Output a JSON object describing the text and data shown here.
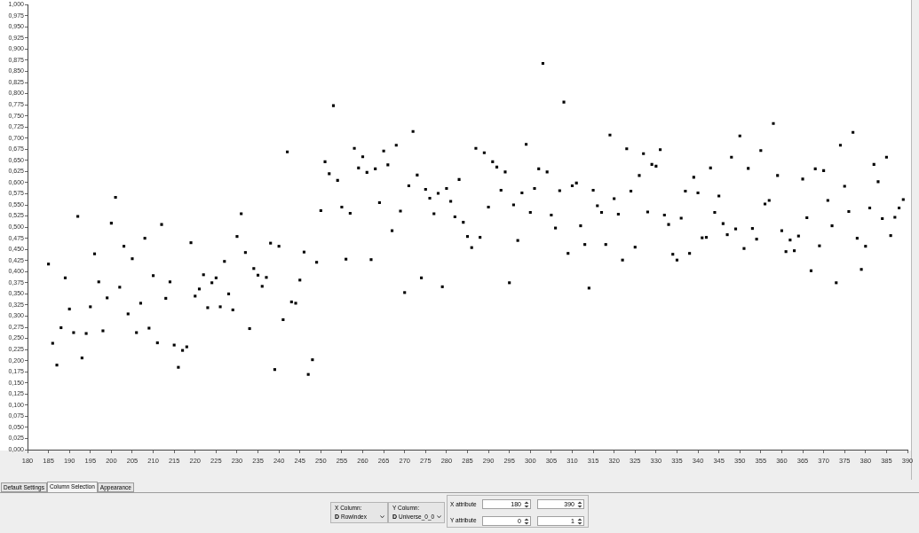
{
  "chart_data": {
    "type": "scatter",
    "color": "#000000",
    "marker": "square",
    "x": [
      185,
      186,
      187,
      188,
      189,
      190,
      191,
      192,
      193,
      194,
      195,
      196,
      197,
      198,
      199,
      200,
      201,
      202,
      203,
      204,
      205,
      206,
      207,
      208,
      209,
      210,
      211,
      212,
      213,
      214,
      215,
      216,
      217,
      218,
      219,
      220,
      221,
      222,
      223,
      224,
      225,
      226,
      227,
      228,
      229,
      230,
      231,
      232,
      233,
      234,
      235,
      236,
      237,
      238,
      239,
      240,
      241,
      242,
      243,
      244,
      245,
      246,
      247,
      248,
      249,
      250,
      251,
      252,
      253,
      254,
      255,
      256,
      257,
      258,
      259,
      260,
      261,
      262,
      263,
      264,
      265,
      266,
      267,
      268,
      269,
      270,
      271,
      272,
      273,
      274,
      275,
      276,
      277,
      278,
      279,
      280,
      281,
      282,
      283,
      284,
      285,
      286,
      287,
      288,
      289,
      290,
      291,
      292,
      293,
      294,
      295,
      296,
      297,
      298,
      299,
      300,
      301,
      302,
      303,
      304,
      305,
      306,
      307,
      308,
      309,
      310,
      311,
      312,
      313,
      314,
      315,
      316,
      317,
      318,
      319,
      320,
      321,
      322,
      323,
      324,
      325,
      326,
      327,
      328,
      329,
      330,
      331,
      332,
      333,
      334,
      335,
      336,
      337,
      338,
      339,
      340,
      341,
      342,
      343,
      344,
      345,
      346,
      347,
      348,
      349,
      350,
      351,
      352,
      353,
      354,
      355,
      356,
      357,
      358,
      359,
      360,
      361,
      362,
      363,
      364,
      365,
      366,
      367,
      368,
      369,
      370,
      371,
      372,
      373,
      374,
      375,
      376,
      377,
      378,
      379,
      380,
      381,
      382,
      383,
      384,
      385,
      386,
      387,
      388,
      389
    ],
    "values": [
      0.417,
      0.239,
      0.19,
      0.274,
      0.386,
      0.316,
      0.263,
      0.524,
      0.206,
      0.261,
      0.321,
      0.44,
      0.377,
      0.267,
      0.341,
      0.509,
      0.567,
      0.365,
      0.457,
      0.305,
      0.429,
      0.263,
      0.329,
      0.475,
      0.273,
      0.391,
      0.24,
      0.506,
      0.34,
      0.377,
      0.235,
      0.185,
      0.223,
      0.231,
      0.465,
      0.345,
      0.361,
      0.393,
      0.319,
      0.375,
      0.386,
      0.321,
      0.423,
      0.35,
      0.314,
      0.479,
      0.53,
      0.443,
      0.272,
      0.407,
      0.392,
      0.367,
      0.387,
      0.464,
      0.18,
      0.457,
      0.292,
      0.669,
      0.332,
      0.329,
      0.381,
      0.444,
      0.169,
      0.202,
      0.421,
      0.537,
      0.647,
      0.62,
      0.773,
      0.605,
      0.545,
      0.428,
      0.531,
      0.677,
      0.633,
      0.658,
      0.623,
      0.427,
      0.631,
      0.555,
      0.671,
      0.64,
      0.492,
      0.684,
      0.536,
      0.353,
      0.593,
      0.715,
      0.617,
      0.386,
      0.585,
      0.565,
      0.53,
      0.576,
      0.366,
      0.587,
      0.558,
      0.523,
      0.607,
      0.511,
      0.479,
      0.454,
      0.677,
      0.477,
      0.667,
      0.545,
      0.647,
      0.635,
      0.583,
      0.624,
      0.375,
      0.55,
      0.47,
      0.577,
      0.686,
      0.533,
      0.587,
      0.631,
      0.868,
      0.624,
      0.527,
      0.498,
      0.582,
      0.781,
      0.441,
      0.593,
      0.599,
      0.503,
      0.461,
      0.363,
      0.583,
      0.548,
      0.533,
      0.461,
      0.707,
      0.564,
      0.529,
      0.426,
      0.676,
      0.581,
      0.455,
      0.616,
      0.665,
      0.534,
      0.641,
      0.637,
      0.674,
      0.527,
      0.506,
      0.439,
      0.426,
      0.52,
      0.581,
      0.441,
      0.612,
      0.577,
      0.476,
      0.477,
      0.633,
      0.533,
      0.57,
      0.508,
      0.483,
      0.657,
      0.496,
      0.705,
      0.452,
      0.632,
      0.497,
      0.473,
      0.672,
      0.552,
      0.56,
      0.733,
      0.616,
      0.492,
      0.445,
      0.471,
      0.447,
      0.48,
      0.608,
      0.521,
      0.402,
      0.631,
      0.458,
      0.627,
      0.56,
      0.503,
      0.375,
      0.684,
      0.592,
      0.535,
      0.713,
      0.475,
      0.405,
      0.457,
      0.543,
      0.641,
      0.602,
      0.519,
      0.657,
      0.481,
      0.522,
      0.543,
      0.562
    ],
    "xlim": [
      180,
      390
    ],
    "xticks": [
      180,
      185,
      190,
      195,
      200,
      205,
      210,
      215,
      220,
      225,
      230,
      235,
      240,
      245,
      250,
      255,
      260,
      265,
      270,
      275,
      280,
      285,
      290,
      295,
      300,
      305,
      310,
      315,
      320,
      325,
      330,
      335,
      340,
      345,
      350,
      355,
      360,
      365,
      370,
      375,
      380,
      385,
      390
    ],
    "ylim": [
      0,
      1
    ],
    "yticks": [
      {
        "value": 0,
        "label": "0,000"
      },
      {
        "value": 0.025,
        "label": "0,025"
      },
      {
        "value": 0.05,
        "label": "0,050"
      },
      {
        "value": 0.075,
        "label": "0,075"
      },
      {
        "value": 0.1,
        "label": "0,100"
      },
      {
        "value": 0.125,
        "label": "0,125"
      },
      {
        "value": 0.15,
        "label": "0,150"
      },
      {
        "value": 0.175,
        "label": "0,175"
      },
      {
        "value": 0.2,
        "label": "0,200"
      },
      {
        "value": 0.225,
        "label": "0,225"
      },
      {
        "value": 0.25,
        "label": "0,250"
      },
      {
        "value": 0.275,
        "label": "0,275"
      },
      {
        "value": 0.3,
        "label": "0,300"
      },
      {
        "value": 0.325,
        "label": "0,325"
      },
      {
        "value": 0.35,
        "label": "0,350"
      },
      {
        "value": 0.375,
        "label": "0,375"
      },
      {
        "value": 0.4,
        "label": "0,400"
      },
      {
        "value": 0.425,
        "label": "0,425"
      },
      {
        "value": 0.45,
        "label": "0,450"
      },
      {
        "value": 0.475,
        "label": "0,475"
      },
      {
        "value": 0.5,
        "label": "0,500"
      },
      {
        "value": 0.525,
        "label": "0,525"
      },
      {
        "value": 0.55,
        "label": "0,550"
      },
      {
        "value": 0.575,
        "label": "0,575"
      },
      {
        "value": 0.6,
        "label": "0,600"
      },
      {
        "value": 0.625,
        "label": "0,625"
      },
      {
        "value": 0.65,
        "label": "0,650"
      },
      {
        "value": 0.675,
        "label": "0,675"
      },
      {
        "value": 0.7,
        "label": "0,700"
      },
      {
        "value": 0.725,
        "label": "0,725"
      },
      {
        "value": 0.75,
        "label": "0,750"
      },
      {
        "value": 0.775,
        "label": "0,775"
      },
      {
        "value": 0.8,
        "label": "0,800"
      },
      {
        "value": 0.825,
        "label": "0,825"
      },
      {
        "value": 0.85,
        "label": "0,850"
      },
      {
        "value": 0.875,
        "label": "0,875"
      },
      {
        "value": 0.9,
        "label": "0,900"
      },
      {
        "value": 0.925,
        "label": "0,925"
      },
      {
        "value": 0.95,
        "label": "0,950"
      },
      {
        "value": 0.975,
        "label": "0,975"
      },
      {
        "value": 1,
        "label": "1,000"
      }
    ],
    "annotations": [
      "Default Settings",
      "Column Selection",
      "Appearance",
      "X Column:",
      "D",
      "RowIndex",
      "Y Column:",
      "D",
      "Universe_0_0",
      "X attribute",
      "Y attribute",
      "180",
      "390",
      "0",
      "1"
    ]
  }
}
